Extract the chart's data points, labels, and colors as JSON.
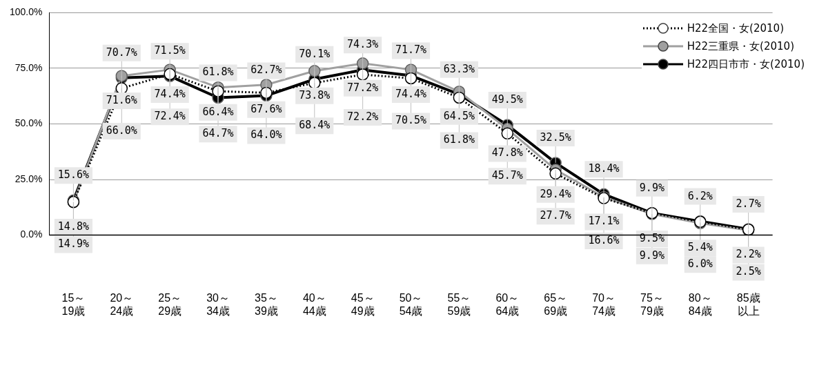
{
  "chart_data": {
    "type": "line",
    "categories": [
      "15～19歳",
      "20～24歳",
      "25～29歳",
      "30～34歳",
      "35～39歳",
      "40～44歳",
      "45～49歳",
      "50～54歳",
      "55～59歳",
      "60～64歳",
      "65～69歳",
      "70～74歳",
      "75～79歳",
      "80～84歳",
      "85歳以上"
    ],
    "ylim": [
      0,
      100
    ],
    "yticks": [
      {
        "value": 0,
        "label": "0.0%"
      },
      {
        "value": 25,
        "label": "25.0%"
      },
      {
        "value": 50,
        "label": "50.0%"
      },
      {
        "value": 75,
        "label": "75.0%"
      },
      {
        "value": 100,
        "label": "100.0%"
      }
    ],
    "grid": "y",
    "legend": "top right",
    "marker": "circle",
    "series": [
      {
        "name": "H22全国・女(2010)",
        "color": "#000000",
        "line_style": "dotted",
        "values": [
          14.9,
          66.0,
          72.4,
          64.7,
          64.0,
          68.4,
          72.2,
          70.5,
          61.8,
          45.7,
          27.7,
          16.6,
          9.9,
          6.0,
          2.5
        ],
        "value_labels": [
          "14.9%",
          "66.0%",
          "72.4%",
          "64.7%",
          "64.0%",
          "68.4%",
          "72.2%",
          "70.5%",
          "61.8%",
          "45.7%",
          "27.7%",
          "16.6%",
          "9.9%",
          "6.0%",
          "2.5%"
        ]
      },
      {
        "name": "H22三重県・女(2010)",
        "color": "#a0a0a0",
        "line_style": "solid",
        "values": [
          14.8,
          71.6,
          74.4,
          66.4,
          67.6,
          73.8,
          77.2,
          74.4,
          64.5,
          47.8,
          29.4,
          17.1,
          9.5,
          5.4,
          2.2
        ],
        "value_labels": [
          "14.8%",
          "71.6%",
          "74.4%",
          "66.4%",
          "67.6%",
          "73.8%",
          "77.2%",
          "74.4%",
          "64.5%",
          "47.8%",
          "29.4%",
          "17.1%",
          "9.5%",
          "5.4%",
          "2.2%"
        ]
      },
      {
        "name": "H22四日市市・女(2010)",
        "color": "#000000",
        "line_style": "solid",
        "values": [
          15.6,
          70.7,
          71.5,
          61.8,
          62.7,
          70.1,
          74.3,
          71.7,
          63.3,
          49.5,
          32.5,
          18.4,
          9.9,
          6.2,
          2.7
        ],
        "value_labels": [
          "15.6%",
          "70.7%",
          "71.5%",
          "61.8%",
          "62.7%",
          "70.1%",
          "74.3%",
          "71.7%",
          "63.3%",
          "49.5%",
          "32.5%",
          "18.4%",
          "9.9%",
          "6.2%",
          "2.7%"
        ]
      }
    ]
  }
}
